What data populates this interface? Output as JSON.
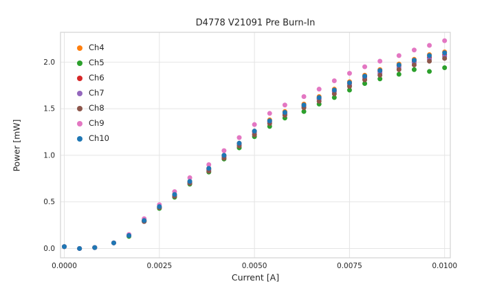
{
  "chart_data": {
    "type": "scatter",
    "title": "D4778 V21091 Pre Burn-In",
    "xlabel": "Current [A]",
    "ylabel": "Power [mW]",
    "grid": true,
    "legend_position": "upper-left",
    "xlim": [
      -0.0001,
      0.01015
    ],
    "ylim": [
      -0.1,
      2.32
    ],
    "x_ticks": {
      "values": [
        0.0,
        0.0025,
        0.005,
        0.0075,
        0.01
      ],
      "labels": [
        "0.0000",
        "0.0025",
        "0.0050",
        "0.0075",
        "0.0100"
      ]
    },
    "y_ticks": {
      "values": [
        0.0,
        0.5,
        1.0,
        1.5,
        2.0
      ],
      "labels": [
        "0.0",
        "0.5",
        "1.0",
        "1.5",
        "2.0"
      ]
    },
    "x": [
      0.0,
      0.0004,
      0.0008,
      0.0013,
      0.0017,
      0.0021,
      0.0025,
      0.0029,
      0.0033,
      0.0038,
      0.0042,
      0.0046,
      0.005,
      0.0054,
      0.0058,
      0.0063,
      0.0067,
      0.0071,
      0.0075,
      0.0079,
      0.0083,
      0.0088,
      0.0092,
      0.0096,
      0.01
    ],
    "series": [
      {
        "name": "Ch4",
        "color": "#ff7f0e",
        "values": [
          0.02,
          0.0,
          0.01,
          0.06,
          0.14,
          0.3,
          0.45,
          0.58,
          0.72,
          0.86,
          1.0,
          1.13,
          1.26,
          1.38,
          1.47,
          1.55,
          1.63,
          1.71,
          1.79,
          1.86,
          1.92,
          1.98,
          2.03,
          2.08,
          2.11
        ]
      },
      {
        "name": "Ch5",
        "color": "#2ca02c",
        "values": [
          0.02,
          0.0,
          0.01,
          0.06,
          0.13,
          0.29,
          0.43,
          0.55,
          0.69,
          0.82,
          0.96,
          1.08,
          1.2,
          1.31,
          1.4,
          1.47,
          1.55,
          1.62,
          1.7,
          1.77,
          1.82,
          1.87,
          1.92,
          1.9,
          1.94
        ]
      },
      {
        "name": "Ch6",
        "color": "#d62728",
        "values": [
          0.02,
          0.0,
          0.01,
          0.06,
          0.14,
          0.3,
          0.44,
          0.57,
          0.71,
          0.85,
          0.99,
          1.12,
          1.25,
          1.36,
          1.45,
          1.53,
          1.61,
          1.69,
          1.77,
          1.84,
          1.9,
          1.96,
          2.01,
          2.05,
          2.08
        ]
      },
      {
        "name": "Ch7",
        "color": "#9467bd",
        "values": [
          0.02,
          0.0,
          0.01,
          0.06,
          0.14,
          0.29,
          0.44,
          0.57,
          0.7,
          0.84,
          0.98,
          1.11,
          1.23,
          1.35,
          1.44,
          1.52,
          1.6,
          1.68,
          1.75,
          1.82,
          1.88,
          1.94,
          1.99,
          2.03,
          2.06
        ]
      },
      {
        "name": "Ch8",
        "color": "#8c564b",
        "values": [
          0.02,
          0.0,
          0.01,
          0.06,
          0.14,
          0.29,
          0.44,
          0.56,
          0.7,
          0.83,
          0.97,
          1.1,
          1.22,
          1.34,
          1.43,
          1.51,
          1.58,
          1.66,
          1.74,
          1.81,
          1.86,
          1.92,
          1.97,
          2.01,
          2.04
        ]
      },
      {
        "name": "Ch9",
        "color": "#e377c2",
        "values": [
          0.02,
          0.0,
          0.01,
          0.06,
          0.15,
          0.32,
          0.47,
          0.61,
          0.76,
          0.9,
          1.05,
          1.19,
          1.33,
          1.45,
          1.54,
          1.63,
          1.71,
          1.8,
          1.88,
          1.95,
          2.01,
          2.07,
          2.13,
          2.18,
          2.23
        ]
      },
      {
        "name": "Ch10",
        "color": "#1f77b4",
        "values": [
          0.02,
          0.0,
          0.01,
          0.06,
          0.14,
          0.3,
          0.45,
          0.58,
          0.72,
          0.86,
          1.0,
          1.13,
          1.26,
          1.37,
          1.46,
          1.54,
          1.62,
          1.7,
          1.78,
          1.85,
          1.91,
          1.97,
          2.02,
          2.07,
          2.1
        ]
      }
    ],
    "style": {
      "grid_color": "#e4e4e4",
      "spine_color": "#d2d2d2",
      "tick_label_color": "#262626",
      "marker_radius": 3.5
    }
  }
}
